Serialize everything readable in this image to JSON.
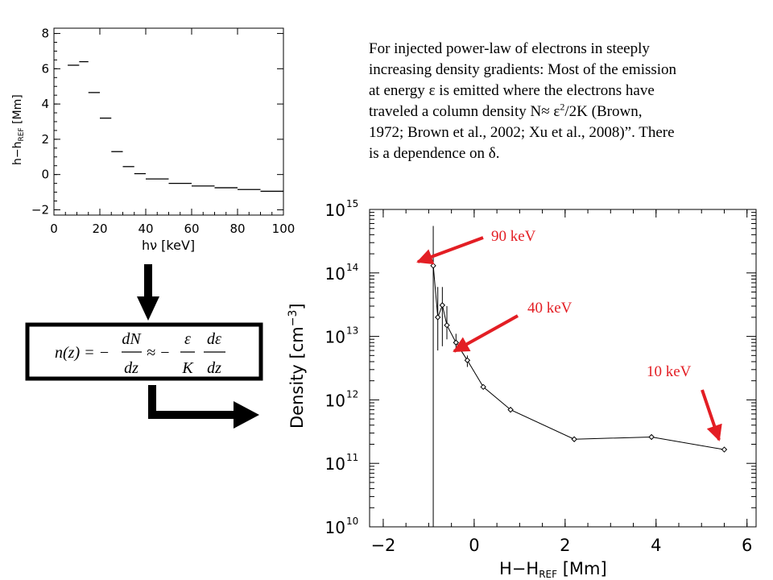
{
  "paragraph": {
    "l1": "For injected power-law of electrons in steeply",
    "l2": "increasing density gradients: Most of the emission",
    "l3a": "at energy ",
    "eps": "ε",
    "l3b": " is emitted where the electrons have",
    "l4a": "traveled a column density N≈ ",
    "sq": "2",
    "l4b": "/2K  (Brown,",
    "l5": "1972; Brown et al., 2002; Xu et al., 2008)”. There",
    "l6a": "is a dependence on ",
    "delta": "δ",
    "l6b": "."
  },
  "annotations": {
    "a90": "90 keV",
    "a40": "40 keV",
    "a10": "10 keV"
  },
  "equation": {
    "lhs": "n(z) = −",
    "num1": "dN",
    "den1": "dz",
    "approx": "≈ −",
    "num2": "ε",
    "den2": "K",
    "num3": "dε",
    "den3": "dz"
  },
  "colors": {
    "arrow_red": "#e31e24",
    "black": "#000000"
  },
  "chart_data": [
    {
      "type": "step",
      "xlabel": "hν [keV]",
      "ylabel_main": "h−h",
      "ylabel_sub": "REF",
      "ylabel_unit": " [Mm]",
      "xlim": [
        0,
        100
      ],
      "ylim": [
        -2.3,
        8.3
      ],
      "xticks": [
        "0",
        "20",
        "40",
        "60",
        "80",
        "100"
      ],
      "xtick_values": [
        0,
        20,
        40,
        60,
        80,
        100
      ],
      "yticks": [
        "−2",
        "0",
        "2",
        "4",
        "6",
        "8"
      ],
      "ytick_values": [
        -2,
        0,
        2,
        4,
        6,
        8
      ],
      "segments": [
        {
          "x0": 6,
          "x1": 11,
          "y": 6.2
        },
        {
          "x0": 11,
          "x1": 15,
          "y": 6.4
        },
        {
          "x0": 15,
          "x1": 20,
          "y": 4.65
        },
        {
          "x0": 20,
          "x1": 25,
          "y": 3.2
        },
        {
          "x0": 25,
          "x1": 30,
          "y": 1.3
        },
        {
          "x0": 30,
          "x1": 35,
          "y": 0.45
        },
        {
          "x0": 35,
          "x1": 40,
          "y": 0.05
        },
        {
          "x0": 40,
          "x1": 50,
          "y": -0.25
        },
        {
          "x0": 50,
          "x1": 60,
          "y": -0.5
        },
        {
          "x0": 60,
          "x1": 70,
          "y": -0.65
        },
        {
          "x0": 70,
          "x1": 80,
          "y": -0.75
        },
        {
          "x0": 80,
          "x1": 90,
          "y": -0.85
        },
        {
          "x0": 90,
          "x1": 100,
          "y": -0.95
        }
      ]
    },
    {
      "type": "line",
      "xlabel_main": "H−H",
      "xlabel_sub": "REF",
      "xlabel_unit": " [Mm]",
      "ylabel": "Density [cm",
      "ylabel_exp": "−3",
      "ylabel_close": "]",
      "log_y": true,
      "xlim": [
        -2.3,
        6.2
      ],
      "ylim": [
        10000000000.0,
        1000000000000000.0
      ],
      "xticks": [
        "−2",
        "0",
        "2",
        "4",
        "6"
      ],
      "xtick_values": [
        -2,
        0,
        2,
        4,
        6
      ],
      "yticks": [
        {
          "base": "10",
          "exp": "10",
          "value": 10000000000.0
        },
        {
          "base": "10",
          "exp": "11",
          "value": 100000000000.0
        },
        {
          "base": "10",
          "exp": "12",
          "value": 1000000000000.0
        },
        {
          "base": "10",
          "exp": "13",
          "value": 10000000000000.0
        },
        {
          "base": "10",
          "exp": "14",
          "value": 100000000000000.0
        },
        {
          "base": "10",
          "exp": "15",
          "value": 1000000000000000.0
        }
      ],
      "series": [
        {
          "x": [
            -0.9,
            -0.8,
            -0.7,
            -0.6,
            -0.4,
            -0.15,
            0.2,
            0.8,
            2.2,
            3.9,
            5.5
          ],
          "y": [
            130000000000000.0,
            20000000000000.0,
            31000000000000.0,
            15000000000000.0,
            8000000000000.0,
            4200000000000.0,
            1600000000000.0,
            700000000000.0,
            240000000000.0,
            260000000000.0,
            165000000000.0
          ],
          "yerr_lo": [
            10000000000.0,
            6000000000000.0,
            7000000000000.0,
            9000000000000.0,
            6000000000000.0,
            3300000000000.0,
            null,
            null,
            null,
            null,
            null
          ],
          "yerr_hi": [
            550000000000000.0,
            60000000000000.0,
            60000000000000.0,
            30000000000000.0,
            11000000000000.0,
            5000000000000.0,
            null,
            null,
            null,
            null,
            null
          ]
        }
      ]
    }
  ]
}
